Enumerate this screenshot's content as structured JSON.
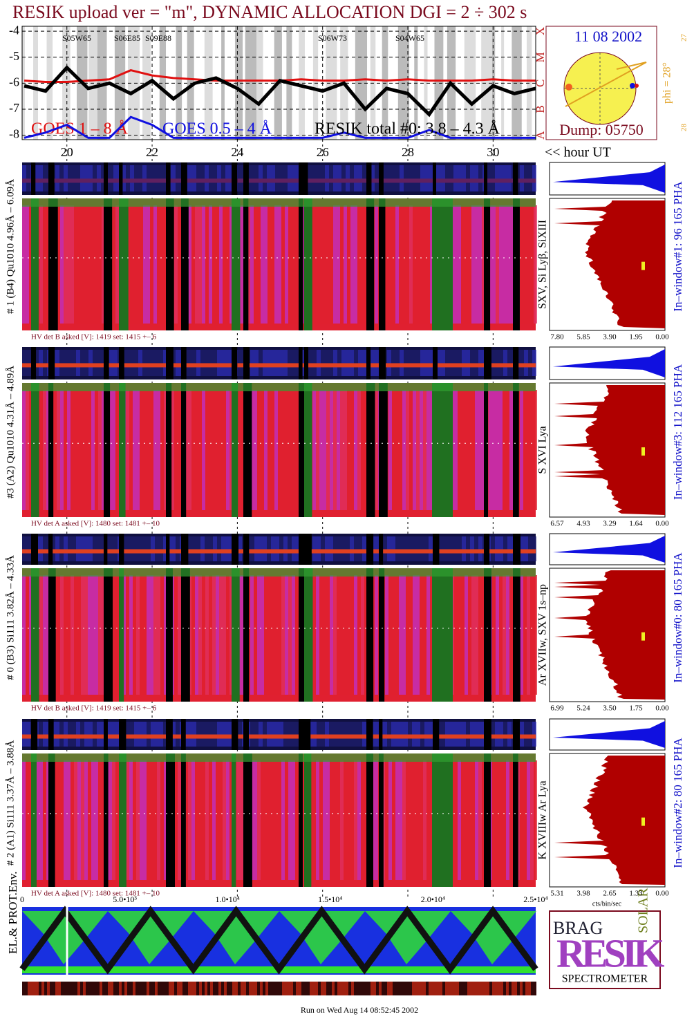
{
  "title": "RESIK upload ver = \"m\", DYNAMIC ALLOCATION  DGI =   2 ÷ 302 s",
  "chart_data": {
    "type": "line",
    "x": [
      19,
      19.5,
      20,
      20.5,
      21,
      21.5,
      22,
      22.5,
      23,
      23.5,
      24,
      24.5,
      25,
      25.5,
      26,
      26.5,
      27,
      27.5,
      28,
      28.5,
      29,
      29.5,
      30,
      30.5,
      31
    ],
    "series": [
      {
        "name": "GOES 1 – 8 Å",
        "color": "#e01010",
        "values": [
          -5.9,
          -5.95,
          -5.95,
          -5.9,
          -5.85,
          -5.5,
          -5.7,
          -5.8,
          -5.85,
          -5.9,
          -5.9,
          -5.9,
          -5.9,
          -5.85,
          -5.9,
          -5.9,
          -5.85,
          -5.9,
          -5.85,
          -5.9,
          -5.9,
          -5.9,
          -5.85,
          -5.9,
          -5.9
        ]
      },
      {
        "name": "GOES 0.5 – 4 Å",
        "color": "#1010e0",
        "values": [
          -8.1,
          -7.9,
          -7.6,
          -8.1,
          -8.1,
          -7.3,
          -7.6,
          -8.1,
          -8.1,
          -8.1,
          -8.1,
          -8.1,
          -8.1,
          -8.1,
          -8.1,
          -7.9,
          -8.1,
          -8.1,
          -8.1,
          -7.8,
          -8.1,
          -8.1,
          -8.1,
          -8.1,
          -8.1
        ]
      },
      {
        "name": "RESIK total #0: 3.8 – 4.3 Å",
        "color": "#000000",
        "values": [
          -6.1,
          -6.3,
          -5.4,
          -6.2,
          -6.0,
          -6.4,
          -5.9,
          -6.6,
          -6.0,
          -5.8,
          -6.2,
          -6.8,
          -5.9,
          -6.1,
          -6.3,
          -6.0,
          -7.0,
          -6.2,
          -6.4,
          -7.2,
          -6.0,
          -6.8,
          -6.1,
          -6.4,
          -6.2
        ]
      }
    ],
    "xlim": [
      18.95,
      31
    ],
    "xticks": [
      20,
      22,
      24,
      26,
      28,
      30
    ],
    "ylim": [
      -8.17,
      -3.81
    ],
    "yticks": [
      -8,
      -7,
      -6,
      -5,
      -4
    ],
    "grid": true,
    "x_label": "<< hour UT",
    "flare_classes": [
      "A",
      "B",
      "C",
      "M",
      "X"
    ],
    "regions": [
      "S05W65",
      "S06E85",
      "S09E88",
      "S06W73",
      "S04W65"
    ]
  },
  "sun": {
    "date": "11 08 2002",
    "dump": "Dump: 05750",
    "phi": "phi = 28°",
    "lat_top": "27",
    "lat_bottom": "28"
  },
  "detectors": [
    {
      "label": "# 1 (B4) Qu1010 4.96Å – 6.09Å",
      "lines": "SXV, Si Lyβ, SiXIII",
      "in_window": "In–window#1:  96 165  PHA",
      "hv": "HV det B asked [V]:  1419  set:  1415  +–   6",
      "pha_ticks": [
        "7.80",
        "5.85",
        "3.90",
        "1.95",
        "0.00"
      ]
    },
    {
      "label": "#3 (A2) Qu1010  4.31Å – 4.89Å",
      "lines": "S XVI Lya",
      "in_window": "In–window#3:  112 165  PHA",
      "hv": "HV det A asked [V]:  1480  set:  1481  +–   10",
      "pha_ticks": [
        "6.57",
        "4.93",
        "3.29",
        "1.64",
        "0.00"
      ]
    },
    {
      "label": "# 0 (B3) Si111  3.82Å – 4.33Å",
      "lines": "Ar XVIIw,  SXV 1s–np",
      "in_window": "In–window#0:   80 165  PHA",
      "hv": "HV det B asked [V]:  1419  set:  1415  +–   6",
      "pha_ticks": [
        "6.99",
        "5.24",
        "3.50",
        "1.75",
        "0.00"
      ]
    },
    {
      "label": "# 2 (A1) Si111  3.37Å –  3.88Å",
      "lines": "K XVIIIw  Ar Lya",
      "in_window": "In–window#2:   80 165  PHA",
      "hv": "HV det A asked [V]:  1480  set:  1481  +–   10",
      "pha_ticks": [
        "5.31",
        "3.98",
        "2.65",
        "1.33",
        "0.00"
      ]
    }
  ],
  "pha_unit": "cts/bin/sec",
  "time_ticks": [
    "0",
    "5.0•10³",
    "1.0•10⁴",
    "1.5•10⁴",
    "2.0•10⁴",
    "2.5•10⁴"
  ],
  "env_label": "EL.& PROT.Env.",
  "logo": {
    "bragg": "BRAG",
    "name": "RESIK",
    "solar": "SOLAR",
    "caption": "SPECTROMETER"
  },
  "footer": "Run on Wed Aug 14 08:52:45 2002"
}
